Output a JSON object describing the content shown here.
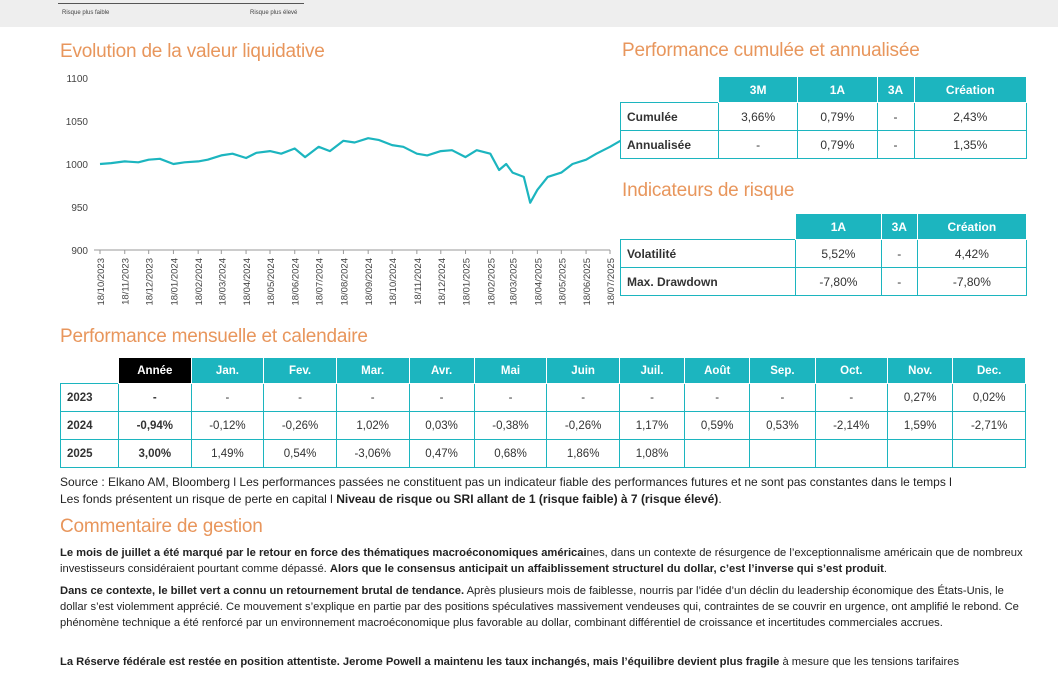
{
  "top_legend": {
    "left": "Risque plus faible",
    "right": "Risque plus élevé"
  },
  "nav_section": {
    "title": "Evolution de la valeur liquidative"
  },
  "chart_data": {
    "type": "line",
    "title": "",
    "xlabel": "",
    "ylabel": "",
    "ylim": [
      900,
      1100
    ],
    "yticks": [
      900,
      950,
      1000,
      1050,
      1100
    ],
    "x_tick_labels": [
      "18/10/2023",
      "18/11/2023",
      "18/12/2023",
      "18/01/2024",
      "18/02/2024",
      "18/03/2024",
      "18/04/2024",
      "18/05/2024",
      "18/06/2024",
      "18/07/2024",
      "18/08/2024",
      "18/09/2024",
      "18/10/2024",
      "18/11/2024",
      "18/12/2024",
      "18/01/2025",
      "18/02/2025",
      "18/03/2025",
      "18/04/2025",
      "18/05/2025",
      "18/06/2025",
      "18/07/2025"
    ],
    "color": "#1cb5bf",
    "series": [
      {
        "x": [
          "18/10/2023",
          "01/11/2023",
          "18/11/2023",
          "05/12/2023",
          "18/12/2023",
          "01/01/2024",
          "18/01/2024",
          "01/02/2024",
          "18/02/2024",
          "01/03/2024",
          "18/03/2024",
          "01/04/2024",
          "18/04/2024",
          "01/05/2024",
          "18/05/2024",
          "01/06/2024",
          "18/06/2024",
          "01/07/2024",
          "18/07/2024",
          "01/08/2024",
          "18/08/2024",
          "01/09/2024",
          "18/09/2024",
          "01/10/2024",
          "18/10/2024",
          "01/11/2024",
          "18/11/2024",
          "01/12/2024",
          "18/12/2024",
          "01/01/2025",
          "18/01/2025",
          "01/02/2025",
          "18/02/2025",
          "01/03/2025",
          "10/03/2025",
          "18/03/2025",
          "01/04/2025",
          "09/04/2025",
          "18/04/2025",
          "01/05/2025",
          "18/05/2025",
          "01/06/2025",
          "18/06/2025",
          "01/07/2025",
          "18/07/2025",
          "31/07/2025"
        ],
        "values": [
          1000,
          1001,
          1003,
          1002,
          1005,
          1006,
          1000,
          1002,
          1003,
          1005,
          1010,
          1012,
          1007,
          1013,
          1015,
          1012,
          1018,
          1008,
          1020,
          1015,
          1027,
          1025,
          1030,
          1028,
          1022,
          1020,
          1012,
          1010,
          1015,
          1016,
          1008,
          1016,
          1012,
          993,
          1000,
          990,
          985,
          955,
          970,
          985,
          990,
          1000,
          1005,
          1012,
          1020,
          1027
        ]
      }
    ]
  },
  "perf_section": {
    "title": "Performance cumulée et annualisée",
    "headers": [
      "3M",
      "1A",
      "3A",
      "Création"
    ],
    "rows": [
      {
        "label": "Cumulée",
        "values": [
          "3,66%",
          "0,79%",
          "-",
          "2,43%"
        ]
      },
      {
        "label": "Annualisée",
        "values": [
          "-",
          "0,79%",
          "-",
          "1,35%"
        ]
      }
    ]
  },
  "risk_section": {
    "title": "Indicateurs de risque",
    "headers": [
      "1A",
      "3A",
      "Création"
    ],
    "rows": [
      {
        "label": "Volatilité",
        "values": [
          "5,52%",
          "-",
          "4,42%"
        ]
      },
      {
        "label": "Max. Drawdown",
        "values": [
          "-7,80%",
          "-",
          "-7,80%"
        ]
      }
    ]
  },
  "monthly_section": {
    "title": "Performance mensuelle et calendaire",
    "year_header": "Année",
    "months": [
      "Jan.",
      "Fev.",
      "Mar.",
      "Avr.",
      "Mai",
      "Juin",
      "Juil.",
      "Août",
      "Sep.",
      "Oct.",
      "Nov.",
      "Dec."
    ],
    "rows": [
      {
        "year": "2023",
        "total": "-",
        "values": [
          "-",
          "-",
          "-",
          "-",
          "-",
          "-",
          "-",
          "-",
          "-",
          "-",
          "0,27%",
          "0,02%"
        ]
      },
      {
        "year": "2024",
        "total": "-0,94%",
        "values": [
          "-0,12%",
          "-0,26%",
          "1,02%",
          "0,03%",
          "-0,38%",
          "-0,26%",
          "1,17%",
          "0,59%",
          "0,53%",
          "-2,14%",
          "1,59%",
          "-2,71%"
        ]
      },
      {
        "year": "2025",
        "total": "3,00%",
        "values": [
          "1,49%",
          "0,54%",
          "-3,06%",
          "0,47%",
          "0,68%",
          "1,86%",
          "1,08%",
          "",
          "",
          "",
          "",
          ""
        ]
      }
    ]
  },
  "source": {
    "line1": "Source : Elkano AM, Bloomberg l Les performances passées ne constituent pas un indicateur fiable des performances futures et ne sont pas constantes dans le temps l",
    "line2_plain": "Les fonds présentent un risque de perte en capital l ",
    "line2_bold": "Niveau de risque ou SRI allant de 1 (risque faible) à 7 (risque élevé)",
    "line2_end": "."
  },
  "commentary": {
    "title": "Commentaire de gestion",
    "p1_bold1": "Le mois de juillet a été marqué par le retour en force des thématiques macroéconomiques américai",
    "p1_text1": "nes, dans un contexte de résurgence de l’exceptionnalisme américain que de nombreux investisseurs considéraient pourtant comme dépassé. ",
    "p1_bold2": "Alors que le consensus anticipait un affaiblissement structurel du dollar, c’est l’inverse qui s’est produit",
    "p1_text2": ".",
    "p2_bold": "Dans ce contexte, le billet vert a connu un retournement brutal de tendance.",
    "p2_text": " Après plusieurs mois de faiblesse, nourris par l’idée d’un déclin du leadership économique des États-Unis, le dollar s’est violemment apprécié. Ce mouvement s’explique en partie par des positions spéculatives massivement vendeuses qui, contraintes de se couvrir en urgence, ont amplifié le rebond. Ce phénomène technique a été renforcé par un environnement macroéconomique plus favorable au dollar, combinant différentiel de croissance et incertitudes commerciales accrues.",
    "p3_bold": "La Réserve fédérale est restée en position attentiste. Jerome Powell a maintenu les taux inchangés, mais l’équilibre devient plus fragile",
    "p3_text": " à mesure que les tensions tarifaires"
  }
}
